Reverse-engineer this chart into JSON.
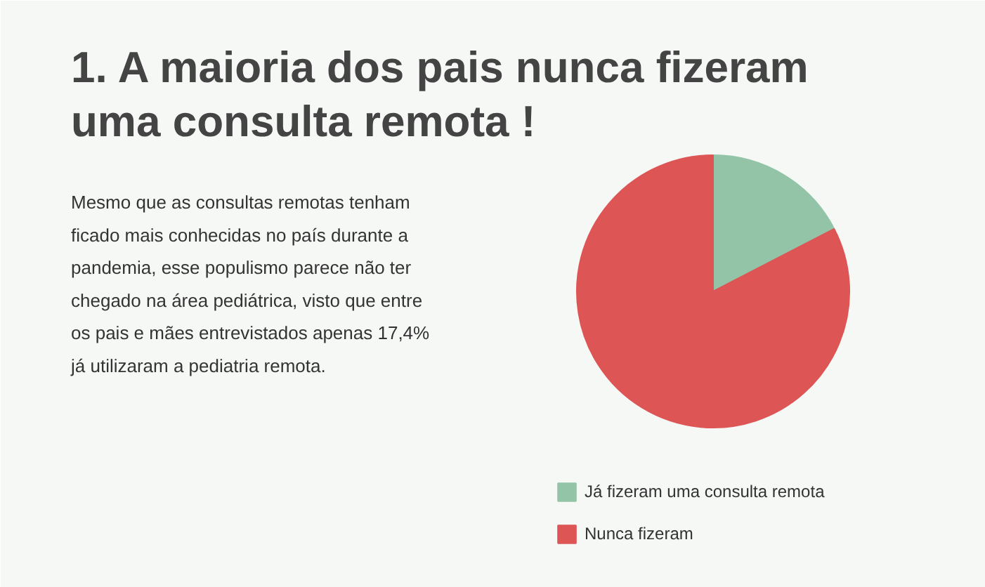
{
  "chart_data": {
    "type": "pie",
    "title": "1. A maioria dos pais nunca fizeram uma consulta remota !",
    "annotations": [
      "Mesmo que as consultas remotas tenham ficado mais conhecidas no país durante a pandemia, esse populismo parece não ter chegado na área pediátrica, visto que entre os pais e mães entrevistados apenas 17,4% já utilizaram a pediatria remota."
    ],
    "categories": [
      "Já fizeram uma consulta remota",
      "Nunca fizeram"
    ],
    "values": [
      17.4,
      82.6
    ],
    "colors": [
      "#93c4a8",
      "#dd5555"
    ],
    "legend": "bottom"
  }
}
